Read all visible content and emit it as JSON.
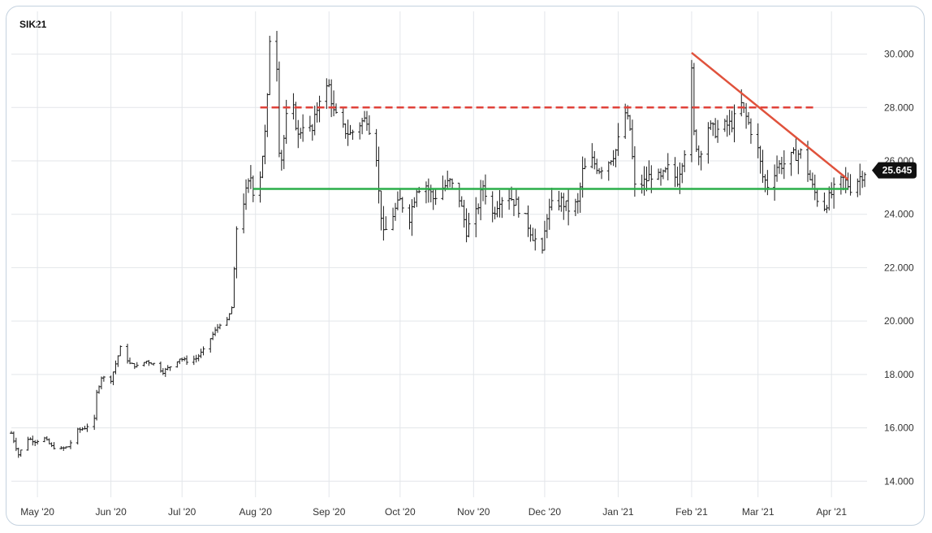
{
  "chart_data": {
    "type": "ohlc",
    "title": "SIK21",
    "last_price": "25.645",
    "xlabel": "",
    "ylabel": "",
    "ylim": [
      13.4,
      31.6
    ],
    "y_ticks": [
      "14.000",
      "16.000",
      "18.000",
      "20.000",
      "22.000",
      "24.000",
      "26.000",
      "28.000",
      "30.000"
    ],
    "x_range": [
      "2020-04-20",
      "2021-04-16"
    ],
    "x_ticks": [
      {
        "date": "2020-05-01",
        "label": "May '20"
      },
      {
        "date": "2020-06-01",
        "label": "Jun '20"
      },
      {
        "date": "2020-07-01",
        "label": "Jul '20"
      },
      {
        "date": "2020-08-01",
        "label": "Aug '20"
      },
      {
        "date": "2020-09-01",
        "label": "Sep '20"
      },
      {
        "date": "2020-10-01",
        "label": "Oct '20"
      },
      {
        "date": "2020-11-01",
        "label": "Nov '20"
      },
      {
        "date": "2020-12-01",
        "label": "Dec '20"
      },
      {
        "date": "2021-01-01",
        "label": "Jan '21"
      },
      {
        "date": "2021-02-01",
        "label": "Feb '21"
      },
      {
        "date": "2021-03-01",
        "label": "Mar '21"
      },
      {
        "date": "2021-04-01",
        "label": "Apr '21"
      }
    ],
    "grid": true,
    "price_path": [
      [
        "2020-04-20",
        15.8
      ],
      [
        "2020-04-23",
        15.0
      ],
      [
        "2020-04-27",
        15.6
      ],
      [
        "2020-04-30",
        15.5
      ],
      [
        "2020-05-04",
        15.6
      ],
      [
        "2020-05-07",
        15.3
      ],
      [
        "2020-05-11",
        15.2
      ],
      [
        "2020-05-14",
        15.3
      ],
      [
        "2020-05-18",
        15.9
      ],
      [
        "2020-05-21",
        16.0
      ],
      [
        "2020-05-25",
        16.3
      ],
      [
        "2020-05-26",
        17.3
      ],
      [
        "2020-05-28",
        17.9
      ],
      [
        "2020-06-01",
        17.8
      ],
      [
        "2020-06-03",
        18.4
      ],
      [
        "2020-06-05",
        19.0
      ],
      [
        "2020-06-09",
        18.4
      ],
      [
        "2020-06-12",
        18.3
      ],
      [
        "2020-06-16",
        18.5
      ],
      [
        "2020-06-19",
        18.4
      ],
      [
        "2020-06-23",
        18.1
      ],
      [
        "2020-06-26",
        18.3
      ],
      [
        "2020-06-30",
        18.6
      ],
      [
        "2020-07-03",
        18.5
      ],
      [
        "2020-07-07",
        18.6
      ],
      [
        "2020-07-10",
        18.9
      ],
      [
        "2020-07-14",
        19.5
      ],
      [
        "2020-07-17",
        19.9
      ],
      [
        "2020-07-20",
        20.0
      ],
      [
        "2020-07-22",
        20.5
      ],
      [
        "2020-07-23",
        21.9
      ],
      [
        "2020-07-24",
        23.5
      ],
      [
        "2020-07-27",
        24.5
      ],
      [
        "2020-07-30",
        25.4
      ],
      [
        "2020-07-31",
        24.9
      ],
      [
        "2020-08-03",
        25.5
      ],
      [
        "2020-08-05",
        27.0
      ],
      [
        "2020-08-06",
        28.3
      ],
      [
        "2020-08-07",
        30.6
      ],
      [
        "2020-08-10",
        29.6
      ],
      [
        "2020-08-11",
        26.5
      ],
      [
        "2020-08-12",
        26.1
      ],
      [
        "2020-08-14",
        27.6
      ],
      [
        "2020-08-17",
        27.9
      ],
      [
        "2020-08-19",
        26.9
      ],
      [
        "2020-08-21",
        27.4
      ],
      [
        "2020-08-25",
        27.1
      ],
      [
        "2020-08-28",
        28.4
      ],
      [
        "2020-09-01",
        28.8
      ],
      [
        "2020-09-03",
        27.8
      ],
      [
        "2020-09-07",
        27.2
      ],
      [
        "2020-09-10",
        27.0
      ],
      [
        "2020-09-14",
        27.4
      ],
      [
        "2020-09-17",
        27.6
      ],
      [
        "2020-09-21",
        26.2
      ],
      [
        "2020-09-22",
        24.8
      ],
      [
        "2020-09-24",
        23.2
      ],
      [
        "2020-09-28",
        24.0
      ],
      [
        "2020-10-01",
        24.5
      ],
      [
        "2020-10-05",
        23.9
      ],
      [
        "2020-10-08",
        25.0
      ],
      [
        "2020-10-12",
        25.1
      ],
      [
        "2020-10-15",
        24.6
      ],
      [
        "2020-10-19",
        25.0
      ],
      [
        "2020-10-22",
        25.2
      ],
      [
        "2020-10-26",
        24.6
      ],
      [
        "2020-10-29",
        23.4
      ],
      [
        "2020-11-02",
        24.0
      ],
      [
        "2020-11-05",
        25.1
      ],
      [
        "2020-11-09",
        24.0
      ],
      [
        "2020-11-12",
        24.6
      ],
      [
        "2020-11-16",
        24.7
      ],
      [
        "2020-11-19",
        24.4
      ],
      [
        "2020-11-23",
        23.8
      ],
      [
        "2020-11-26",
        23.2
      ],
      [
        "2020-11-30",
        22.6
      ],
      [
        "2020-12-02",
        24.0
      ],
      [
        "2020-12-04",
        24.3
      ],
      [
        "2020-12-08",
        24.5
      ],
      [
        "2020-12-11",
        24.2
      ],
      [
        "2020-12-15",
        24.4
      ],
      [
        "2020-12-17",
        25.6
      ],
      [
        "2020-12-21",
        26.0
      ],
      [
        "2020-12-24",
        25.7
      ],
      [
        "2020-12-28",
        26.0
      ],
      [
        "2020-12-31",
        26.4
      ],
      [
        "2021-01-04",
        27.8
      ],
      [
        "2021-01-06",
        27.2
      ],
      [
        "2021-01-08",
        25.0
      ],
      [
        "2021-01-12",
        25.2
      ],
      [
        "2021-01-15",
        25.5
      ],
      [
        "2021-01-19",
        25.3
      ],
      [
        "2021-01-22",
        25.7
      ],
      [
        "2021-01-26",
        25.3
      ],
      [
        "2021-01-29",
        26.4
      ],
      [
        "2021-02-01",
        29.3
      ],
      [
        "2021-02-02",
        27.0
      ],
      [
        "2021-02-04",
        26.2
      ],
      [
        "2021-02-08",
        27.3
      ],
      [
        "2021-02-11",
        27.1
      ],
      [
        "2021-02-15",
        27.3
      ],
      [
        "2021-02-18",
        27.4
      ],
      [
        "2021-02-22",
        28.1
      ],
      [
        "2021-02-25",
        27.4
      ],
      [
        "2021-03-01",
        26.4
      ],
      [
        "2021-03-03",
        25.4
      ],
      [
        "2021-03-05",
        25.1
      ],
      [
        "2021-03-09",
        25.8
      ],
      [
        "2021-03-12",
        25.9
      ],
      [
        "2021-03-16",
        26.2
      ],
      [
        "2021-03-19",
        26.3
      ],
      [
        "2021-03-22",
        25.6
      ],
      [
        "2021-03-24",
        25.0
      ],
      [
        "2021-03-26",
        24.6
      ],
      [
        "2021-03-29",
        24.3
      ],
      [
        "2021-03-31",
        24.6
      ],
      [
        "2021-04-02",
        24.9
      ],
      [
        "2021-04-06",
        25.3
      ],
      [
        "2021-04-09",
        25.0
      ],
      [
        "2021-04-13",
        25.4
      ],
      [
        "2021-04-15",
        25.6
      ]
    ],
    "annotations": [
      {
        "type": "horizontal",
        "style": "solid",
        "color": "#2bae4a",
        "y": 24.95,
        "x_start": "2020-07-31",
        "x_end": "2021-04-08"
      },
      {
        "type": "horizontal",
        "style": "dashed",
        "color": "#e0423a",
        "y": 28.0,
        "x_start": "2020-08-03",
        "x_end": "2021-03-25"
      },
      {
        "type": "trendline",
        "style": "solid",
        "color": "#e0523c",
        "from": [
          "2021-02-01",
          30.05
        ],
        "to": [
          "2021-04-08",
          25.3
        ]
      }
    ],
    "colors": {
      "bars": "#1a1a1a",
      "grid": "#e3e6ea",
      "price_tag_bg": "#111111",
      "price_tag_text": "#ffffff",
      "frame": "#c4d2df"
    }
  }
}
